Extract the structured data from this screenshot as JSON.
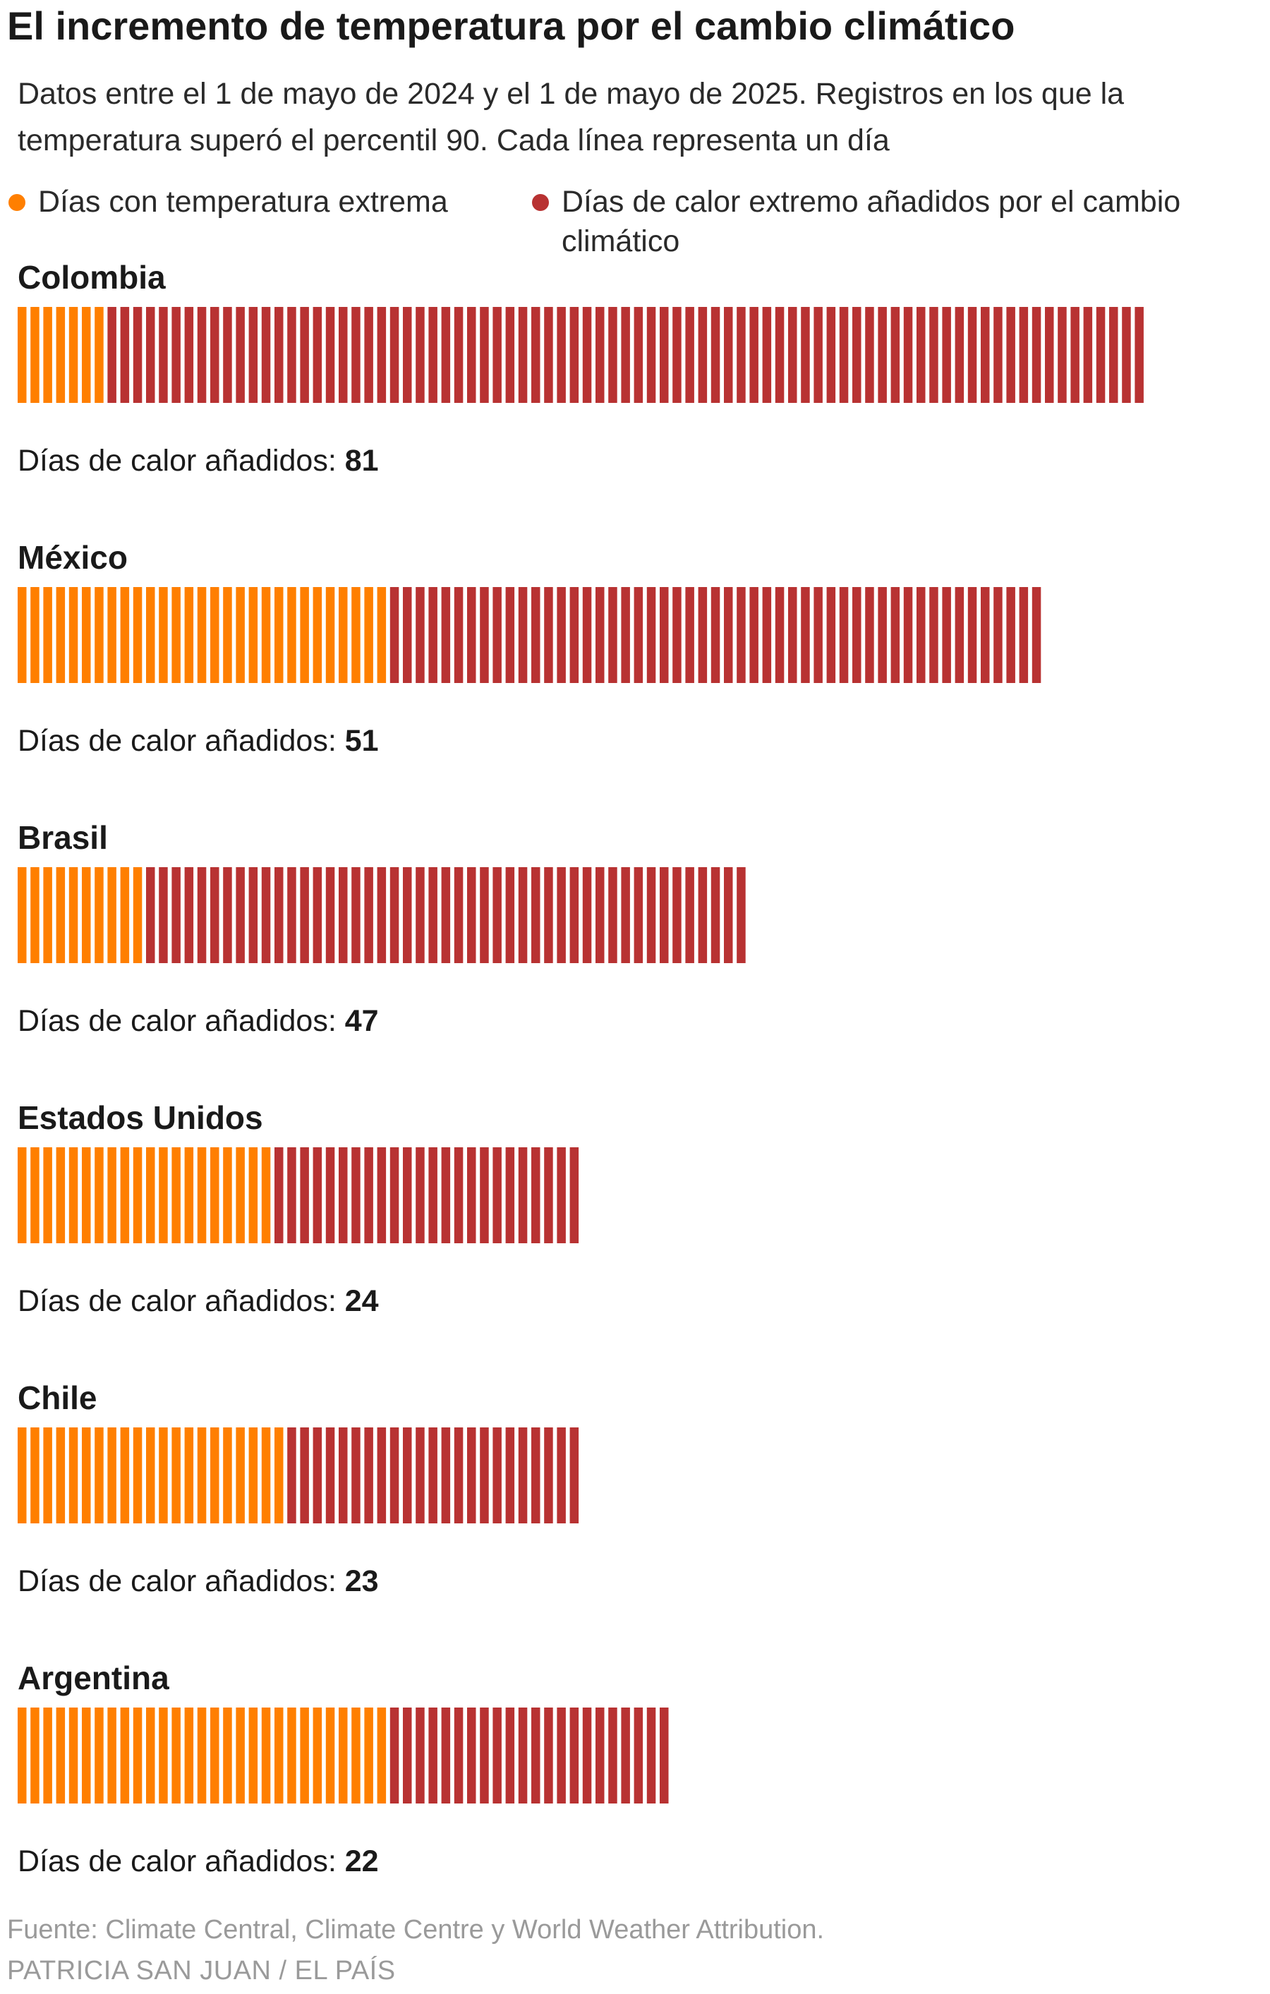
{
  "title": "El incremento de temperatura por el cambio climático",
  "subtitle": "Datos entre el 1 de mayo de 2024 y el 1 de mayo de 2025. Registros en los que la temperatura superó el percentil 90. Cada línea representa un día",
  "legend": {
    "base": {
      "label": "Días con temperatura extrema",
      "color": "#ff7f00"
    },
    "added": {
      "label": "Días de calor extremo añadidos por el cambio climático",
      "color": "#b83232"
    }
  },
  "chart_data": {
    "type": "bar",
    "orientation": "horizontal-stacked-unit",
    "series": [
      {
        "name": "Días con temperatura extrema",
        "key": "base",
        "color": "#ff7f00"
      },
      {
        "name": "Días de calor extremo añadidos por el cambio climático",
        "key": "added",
        "color": "#b83232"
      }
    ],
    "added_label_prefix": "Días de calor añadidos: ",
    "countries": [
      {
        "name": "Colombia",
        "base": 7,
        "added": 81
      },
      {
        "name": "México",
        "base": 29,
        "added": 51
      },
      {
        "name": "Brasil",
        "base": 10,
        "added": 47
      },
      {
        "name": "Estados Unidos",
        "base": 20,
        "added": 24
      },
      {
        "name": "Chile",
        "base": 21,
        "added": 23
      },
      {
        "name": "Argentina",
        "base": 29,
        "added": 22
      }
    ]
  },
  "footer": {
    "source": "Fuente: Climate Central, Climate Centre y World Weather Attribution.",
    "credit": "PATRICIA SAN JUAN / EL PAÍS"
  }
}
